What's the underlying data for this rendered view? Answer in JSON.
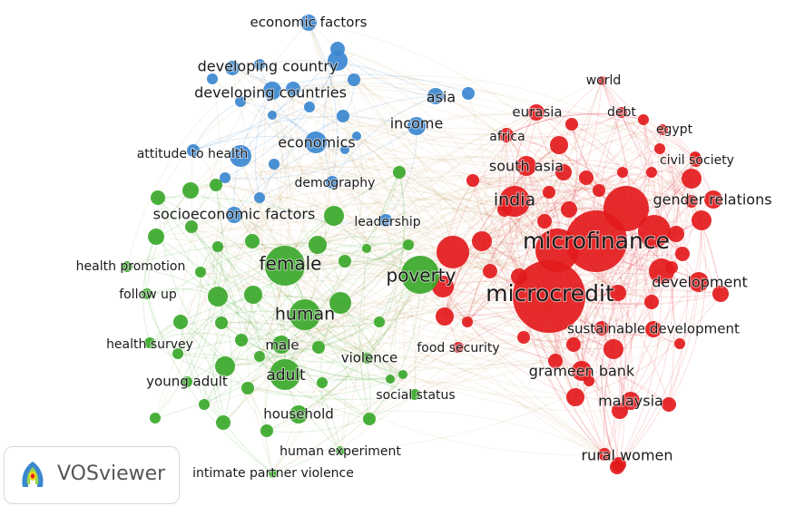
{
  "colors": {
    "red": "#e31a1c",
    "green": "#3aa82a",
    "blue": "#3b87d0"
  },
  "logo": {
    "text": "VOSviewer"
  },
  "network": {
    "labels": [
      {
        "text": "economic factors",
        "cluster": "blue"
      },
      {
        "text": "developing country",
        "cluster": "blue"
      },
      {
        "text": "developing countries",
        "cluster": "blue"
      },
      {
        "text": "asia",
        "cluster": "blue"
      },
      {
        "text": "income",
        "cluster": "blue"
      },
      {
        "text": "economics",
        "cluster": "blue"
      },
      {
        "text": "attitude to health",
        "cluster": "blue"
      },
      {
        "text": "demography",
        "cluster": "blue"
      },
      {
        "text": "socioeconomic factors",
        "cluster": "blue"
      },
      {
        "text": "leadership",
        "cluster": "blue"
      },
      {
        "text": "health promotion",
        "cluster": "green"
      },
      {
        "text": "female",
        "cluster": "green"
      },
      {
        "text": "follow up",
        "cluster": "green"
      },
      {
        "text": "poverty",
        "cluster": "green"
      },
      {
        "text": "human",
        "cluster": "green"
      },
      {
        "text": "health survey",
        "cluster": "green"
      },
      {
        "text": "male",
        "cluster": "green"
      },
      {
        "text": "adult",
        "cluster": "green"
      },
      {
        "text": "violence",
        "cluster": "green"
      },
      {
        "text": "young adult",
        "cluster": "green"
      },
      {
        "text": "household",
        "cluster": "green"
      },
      {
        "text": "social status",
        "cluster": "green"
      },
      {
        "text": "human experiment",
        "cluster": "green"
      },
      {
        "text": "intimate partner violence",
        "cluster": "green"
      },
      {
        "text": "world",
        "cluster": "red"
      },
      {
        "text": "eurasia",
        "cluster": "red"
      },
      {
        "text": "debt",
        "cluster": "red"
      },
      {
        "text": "egypt",
        "cluster": "red"
      },
      {
        "text": "africa",
        "cluster": "red"
      },
      {
        "text": "civil society",
        "cluster": "red"
      },
      {
        "text": "south asia",
        "cluster": "red"
      },
      {
        "text": "india",
        "cluster": "red"
      },
      {
        "text": "gender relations",
        "cluster": "red"
      },
      {
        "text": "microfinance",
        "cluster": "red"
      },
      {
        "text": "development",
        "cluster": "red"
      },
      {
        "text": "microcredit",
        "cluster": "red"
      },
      {
        "text": "sustainable development",
        "cluster": "red"
      },
      {
        "text": "food security",
        "cluster": "red"
      },
      {
        "text": "grameen bank",
        "cluster": "red"
      },
      {
        "text": "malaysia",
        "cluster": "red"
      },
      {
        "text": "rural women",
        "cluster": "red"
      }
    ]
  }
}
